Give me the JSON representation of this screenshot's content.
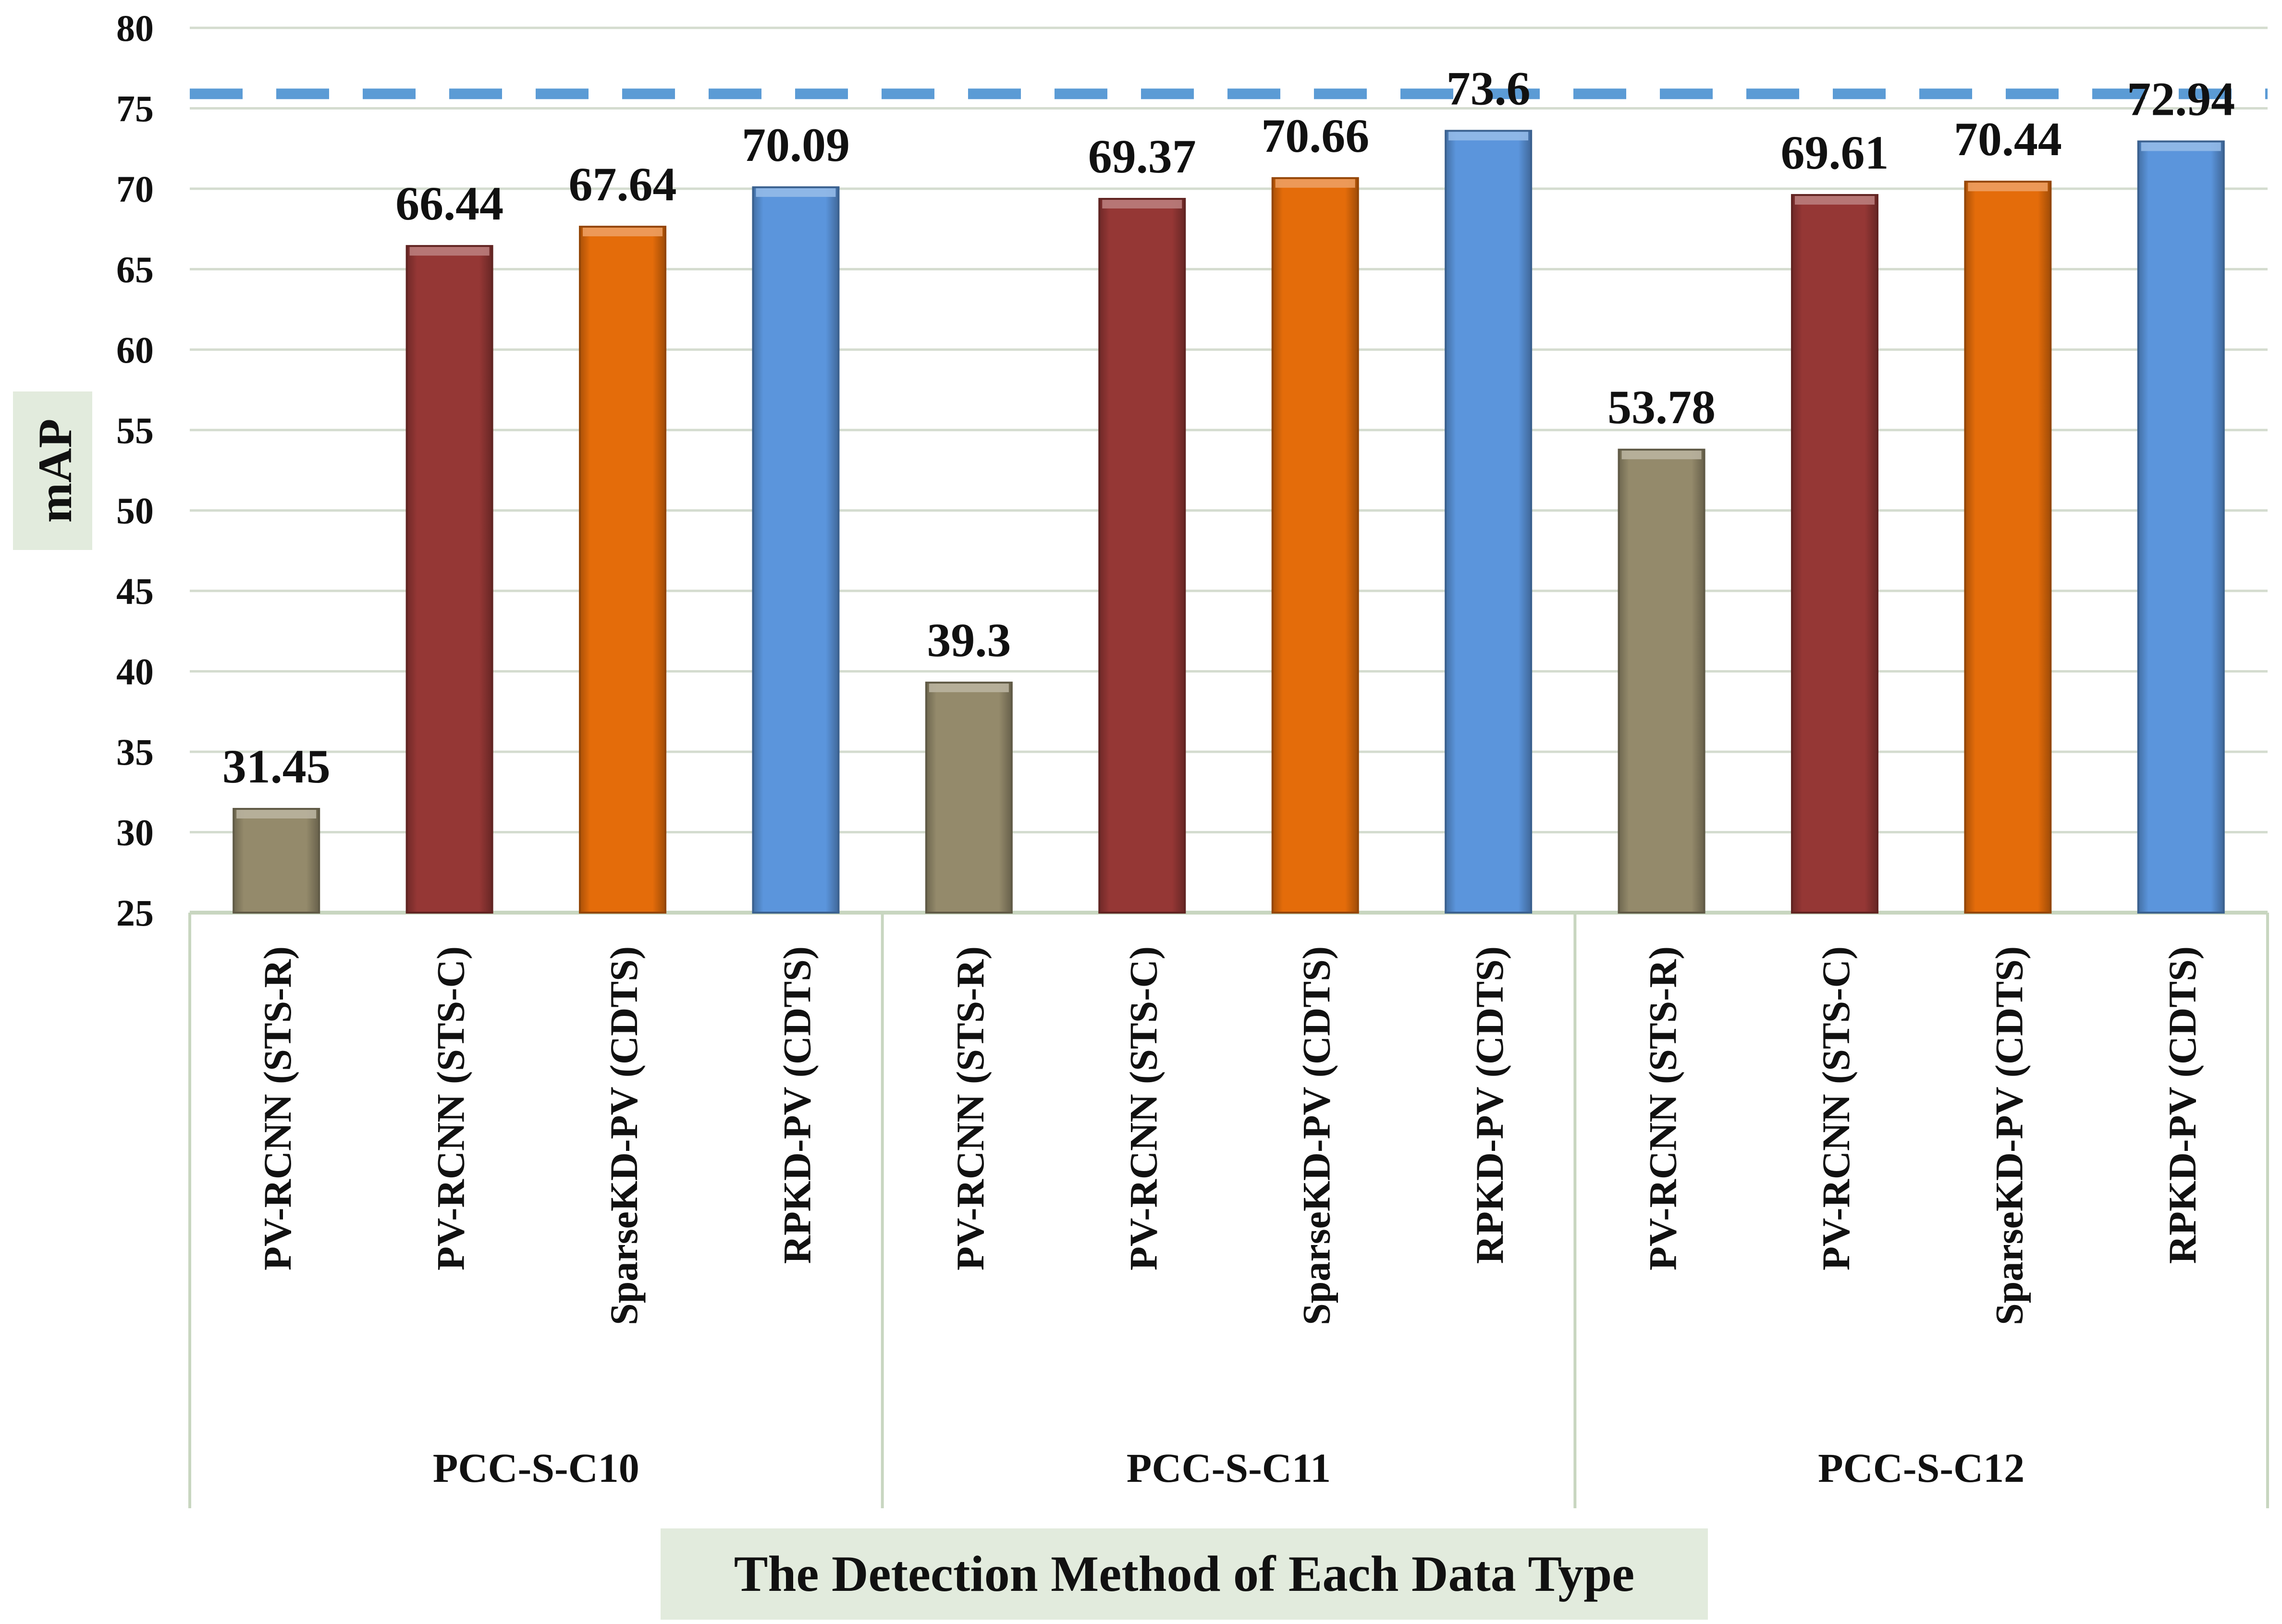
{
  "chart_data": {
    "type": "bar",
    "title": "",
    "xlabel": "The Detection Method of Each Data Type",
    "ylabel": "mAP",
    "ylim": [
      25,
      80
    ],
    "yticks": [
      25,
      30,
      35,
      40,
      45,
      50,
      55,
      60,
      65,
      70,
      75,
      80
    ],
    "grid": true,
    "reference_line": {
      "value": 75.9,
      "style": "dashed",
      "color": "#5B9BD5"
    },
    "groups": [
      {
        "name": "PCC-S-C10",
        "bars": [
          {
            "label": "PV-RCNN (STS-R)",
            "value": 31.45,
            "value_label": "31.45",
            "color": "#948A6B"
          },
          {
            "label": "PV-RCNN (STS-C)",
            "value": 66.44,
            "value_label": "66.44",
            "color": "#953735"
          },
          {
            "label": "SparseKD-PV (CDTS)",
            "value": 67.64,
            "value_label": "67.64",
            "color": "#E46C0A"
          },
          {
            "label": "RPKD-PV (CDTS)",
            "value": 70.09,
            "value_label": "70.09",
            "color": "#5B95DC"
          }
        ]
      },
      {
        "name": "PCC-S-C11",
        "bars": [
          {
            "label": "PV-RCNN (STS-R)",
            "value": 39.3,
            "value_label": "39.3",
            "color": "#948A6B"
          },
          {
            "label": "PV-RCNN (STS-C)",
            "value": 69.37,
            "value_label": "69.37",
            "color": "#953735"
          },
          {
            "label": "SparseKD-PV (CDTS)",
            "value": 70.66,
            "value_label": "70.66",
            "color": "#E46C0A"
          },
          {
            "label": "RPKD-PV (CDTS)",
            "value": 73.6,
            "value_label": "73.6",
            "color": "#5B95DC"
          }
        ]
      },
      {
        "name": "PCC-S-C12",
        "bars": [
          {
            "label": "PV-RCNN (STS-R)",
            "value": 53.78,
            "value_label": "53.78",
            "color": "#948A6B"
          },
          {
            "label": "PV-RCNN (STS-C)",
            "value": 69.61,
            "value_label": "69.61",
            "color": "#953735"
          },
          {
            "label": "SparseKD-PV (CDTS)",
            "value": 70.44,
            "value_label": "70.44",
            "color": "#E46C0A"
          },
          {
            "label": "RPKD-PV (CDTS)",
            "value": 72.94,
            "value_label": "72.94",
            "color": "#5B95DC"
          }
        ]
      }
    ]
  }
}
